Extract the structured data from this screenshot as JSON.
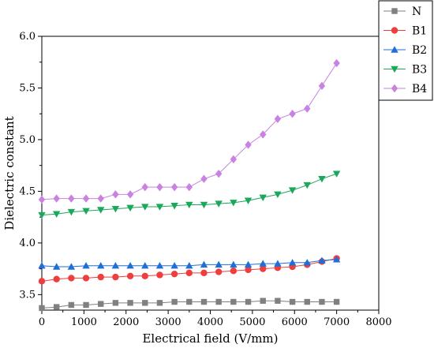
{
  "chart_data": {
    "type": "line",
    "title": "",
    "xlabel": "Electrical field (V/mm)",
    "ylabel": "Dielectric constant",
    "xlim": [
      0,
      8000
    ],
    "ylim": [
      3.35,
      6.0
    ],
    "xticks": [
      0,
      1000,
      2000,
      3000,
      4000,
      5000,
      6000,
      7000,
      8000
    ],
    "xtick_labels": [
      "0",
      "1000",
      "2000",
      "3000",
      "4000",
      "5000",
      "6000",
      "7000",
      "8000"
    ],
    "yticks": [
      3.5,
      4.0,
      4.5,
      5.0,
      5.5,
      6.0
    ],
    "ytick_labels": [
      "3.5",
      "4.0",
      "4.5",
      "5.0",
      "5.5",
      "6.0"
    ],
    "legend_position": "top-right",
    "grid": false,
    "x": [
      0,
      350,
      700,
      1050,
      1400,
      1750,
      2100,
      2450,
      2800,
      3150,
      3500,
      3850,
      4200,
      4550,
      4900,
      5250,
      5600,
      5950,
      6300,
      6650,
      7000
    ],
    "series": [
      {
        "name": "N",
        "marker": "square",
        "color": "#808080",
        "values": [
          3.37,
          3.38,
          3.4,
          3.4,
          3.41,
          3.42,
          3.42,
          3.42,
          3.42,
          3.43,
          3.43,
          3.43,
          3.43,
          3.43,
          3.43,
          3.44,
          3.44,
          3.43,
          3.43,
          3.43,
          3.43
        ]
      },
      {
        "name": "B1",
        "marker": "circle",
        "color": "#ee3e3e",
        "values": [
          3.63,
          3.65,
          3.66,
          3.66,
          3.67,
          3.67,
          3.68,
          3.68,
          3.69,
          3.7,
          3.71,
          3.71,
          3.72,
          3.73,
          3.74,
          3.75,
          3.76,
          3.77,
          3.79,
          3.82,
          3.85
        ]
      },
      {
        "name": "B2",
        "marker": "triangle-up",
        "color": "#1f6fd6",
        "values": [
          3.78,
          3.77,
          3.77,
          3.78,
          3.78,
          3.78,
          3.78,
          3.78,
          3.78,
          3.78,
          3.78,
          3.79,
          3.79,
          3.79,
          3.79,
          3.8,
          3.8,
          3.81,
          3.81,
          3.83,
          3.84
        ]
      },
      {
        "name": "B3",
        "marker": "triangle-down",
        "color": "#1aa85a",
        "values": [
          4.27,
          4.28,
          4.3,
          4.31,
          4.32,
          4.33,
          4.34,
          4.35,
          4.35,
          4.36,
          4.37,
          4.37,
          4.38,
          4.39,
          4.41,
          4.44,
          4.47,
          4.51,
          4.56,
          4.62,
          4.67
        ]
      },
      {
        "name": "B4",
        "marker": "diamond",
        "color": "#c982e0",
        "values": [
          4.42,
          4.43,
          4.43,
          4.43,
          4.43,
          4.47,
          4.47,
          4.54,
          4.54,
          4.54,
          4.54,
          4.62,
          4.67,
          4.81,
          4.95,
          5.05,
          5.2,
          5.25,
          5.3,
          5.52,
          5.74
        ]
      }
    ]
  }
}
